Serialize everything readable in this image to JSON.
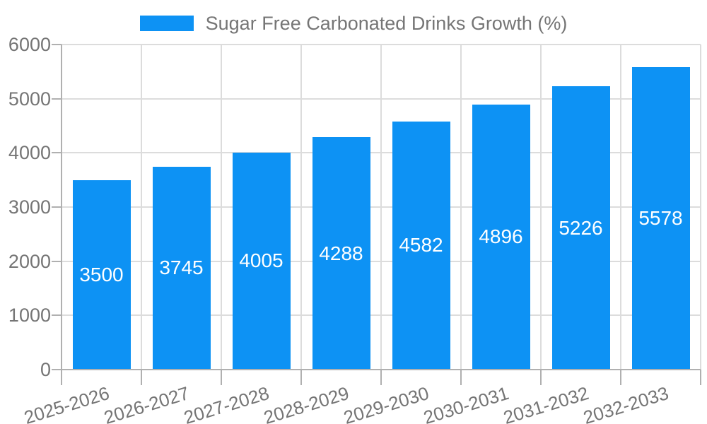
{
  "chart_data": {
    "type": "bar",
    "series_name": "Sugar Free Carbonated Drinks Growth (%)",
    "categories": [
      "2025-2026",
      "2026-2027",
      "2027-2028",
      "2028-2029",
      "2029-2030",
      "2030-2031",
      "2031-2032",
      "2032-2033"
    ],
    "values": [
      3500,
      3745,
      4005,
      4288,
      4582,
      4896,
      5226,
      5578
    ],
    "title": "",
    "xlabel": "",
    "ylabel": "",
    "ylim": [
      0,
      6000
    ],
    "yticks": [
      0,
      1000,
      2000,
      3000,
      4000,
      5000,
      6000
    ],
    "grid": true,
    "legend_position": "top",
    "bar_label_position": "inside-center",
    "colors": {
      "bar": "#0d92f4",
      "bar_value_text": "#ffffff",
      "axis_text": "#757575",
      "legend_text": "#757575",
      "grid_line": "#dcdcdc",
      "axis_line": "#b0b0b0",
      "background": "#ffffff"
    }
  }
}
